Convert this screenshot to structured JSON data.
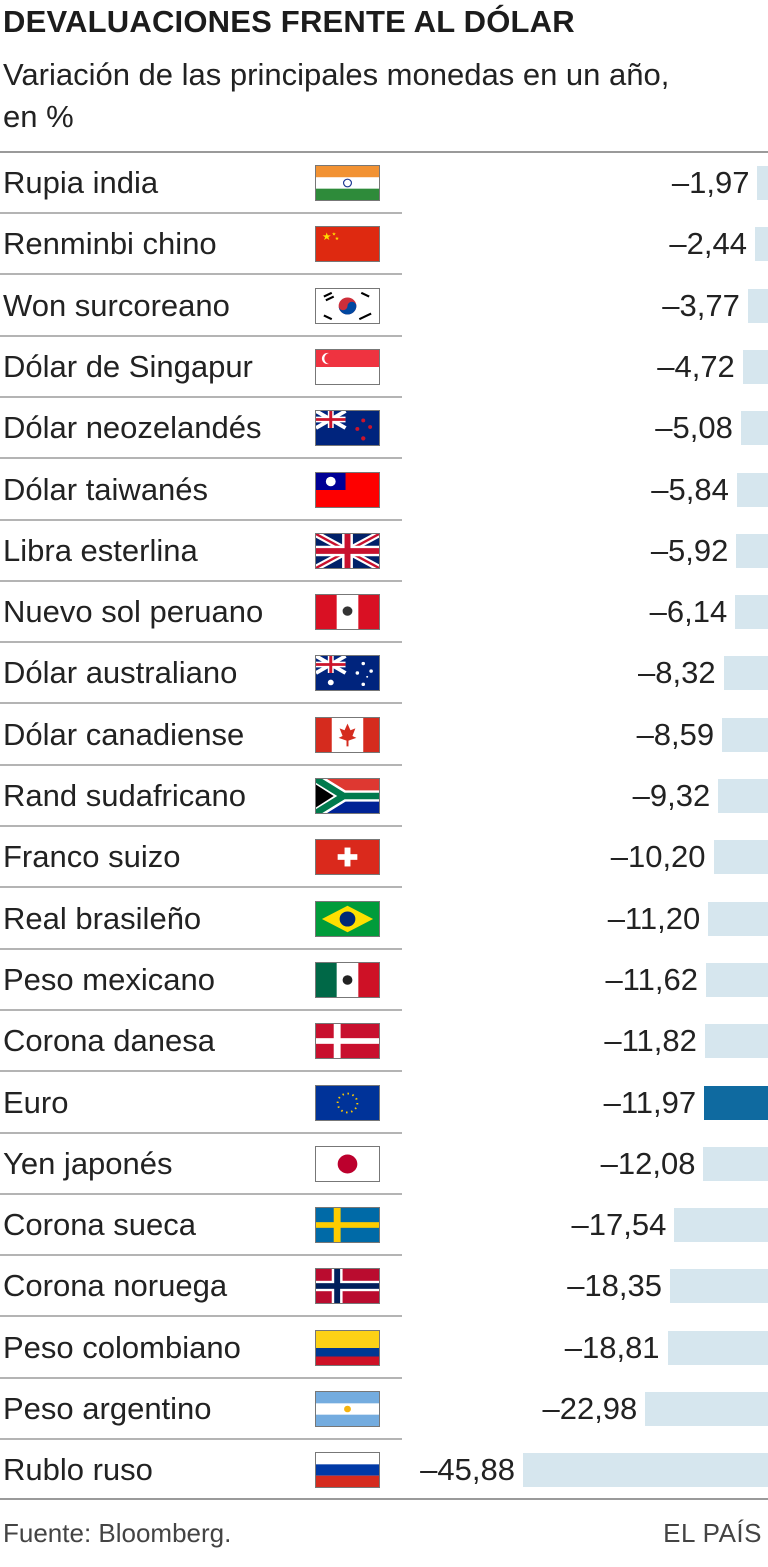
{
  "title": "DEVALUACIONES FRENTE AL DÓLAR",
  "subtitle": "Variación de las principales monedas en un año, en %",
  "source": "Fuente: Bloomberg.",
  "credit": "EL PAÍS",
  "colors": {
    "bar": "#d6e6ee",
    "highlight": "#0f6aa0"
  },
  "chart_data": {
    "type": "bar",
    "orientation": "horizontal",
    "title": "DEVALUACIONES FRENTE AL DÓLAR",
    "subtitle": "Variación de las principales monedas en un año, en %",
    "highlight": "Euro",
    "categories": [
      "Rupia india",
      "Renminbi chino",
      "Won surcoreano",
      "Dólar de Singapur",
      "Dólar neozelandés",
      "Dólar taiwanés",
      "Libra esterlina",
      "Nuevo sol peruano",
      "Dólar australiano",
      "Dólar canadiense",
      "Rand sudafricano",
      "Franco suizo",
      "Real brasileño",
      "Peso mexicano",
      "Corona danesa",
      "Euro",
      "Yen japonés",
      "Corona sueca",
      "Corona noruega",
      "Peso colombiano",
      "Peso argentino",
      "Rublo ruso"
    ],
    "values": [
      -1.97,
      -2.44,
      -3.77,
      -4.72,
      -5.08,
      -5.84,
      -5.92,
      -6.14,
      -8.32,
      -8.59,
      -9.32,
      -10.2,
      -11.2,
      -11.62,
      -11.82,
      -11.97,
      -12.08,
      -17.54,
      -18.35,
      -18.81,
      -22.98,
      -45.88
    ],
    "labels": [
      "–1,97",
      "–2,44",
      "–3,77",
      "–4,72",
      "–5,08",
      "–5,84",
      "–5,92",
      "–6,14",
      "–8,32",
      "–8,59",
      "–9,32",
      "–10,20",
      "–11,20",
      "–11,62",
      "–11,82",
      "–11,97",
      "–12,08",
      "–17,54",
      "–18,35",
      "–18,81",
      "–22,98",
      "–45,88"
    ],
    "flags": [
      "india-flag",
      "china-flag",
      "south-korea-flag",
      "singapore-flag",
      "new-zealand-flag",
      "taiwan-flag",
      "united-kingdom-flag",
      "peru-flag",
      "australia-flag",
      "canada-flag",
      "south-africa-flag",
      "switzerland-flag",
      "brazil-flag",
      "mexico-flag",
      "denmark-flag",
      "european-union-flag",
      "japan-flag",
      "sweden-flag",
      "norway-flag",
      "colombia-flag",
      "argentina-flag",
      "russia-flag"
    ],
    "xlim": [
      -45.88,
      0
    ]
  }
}
